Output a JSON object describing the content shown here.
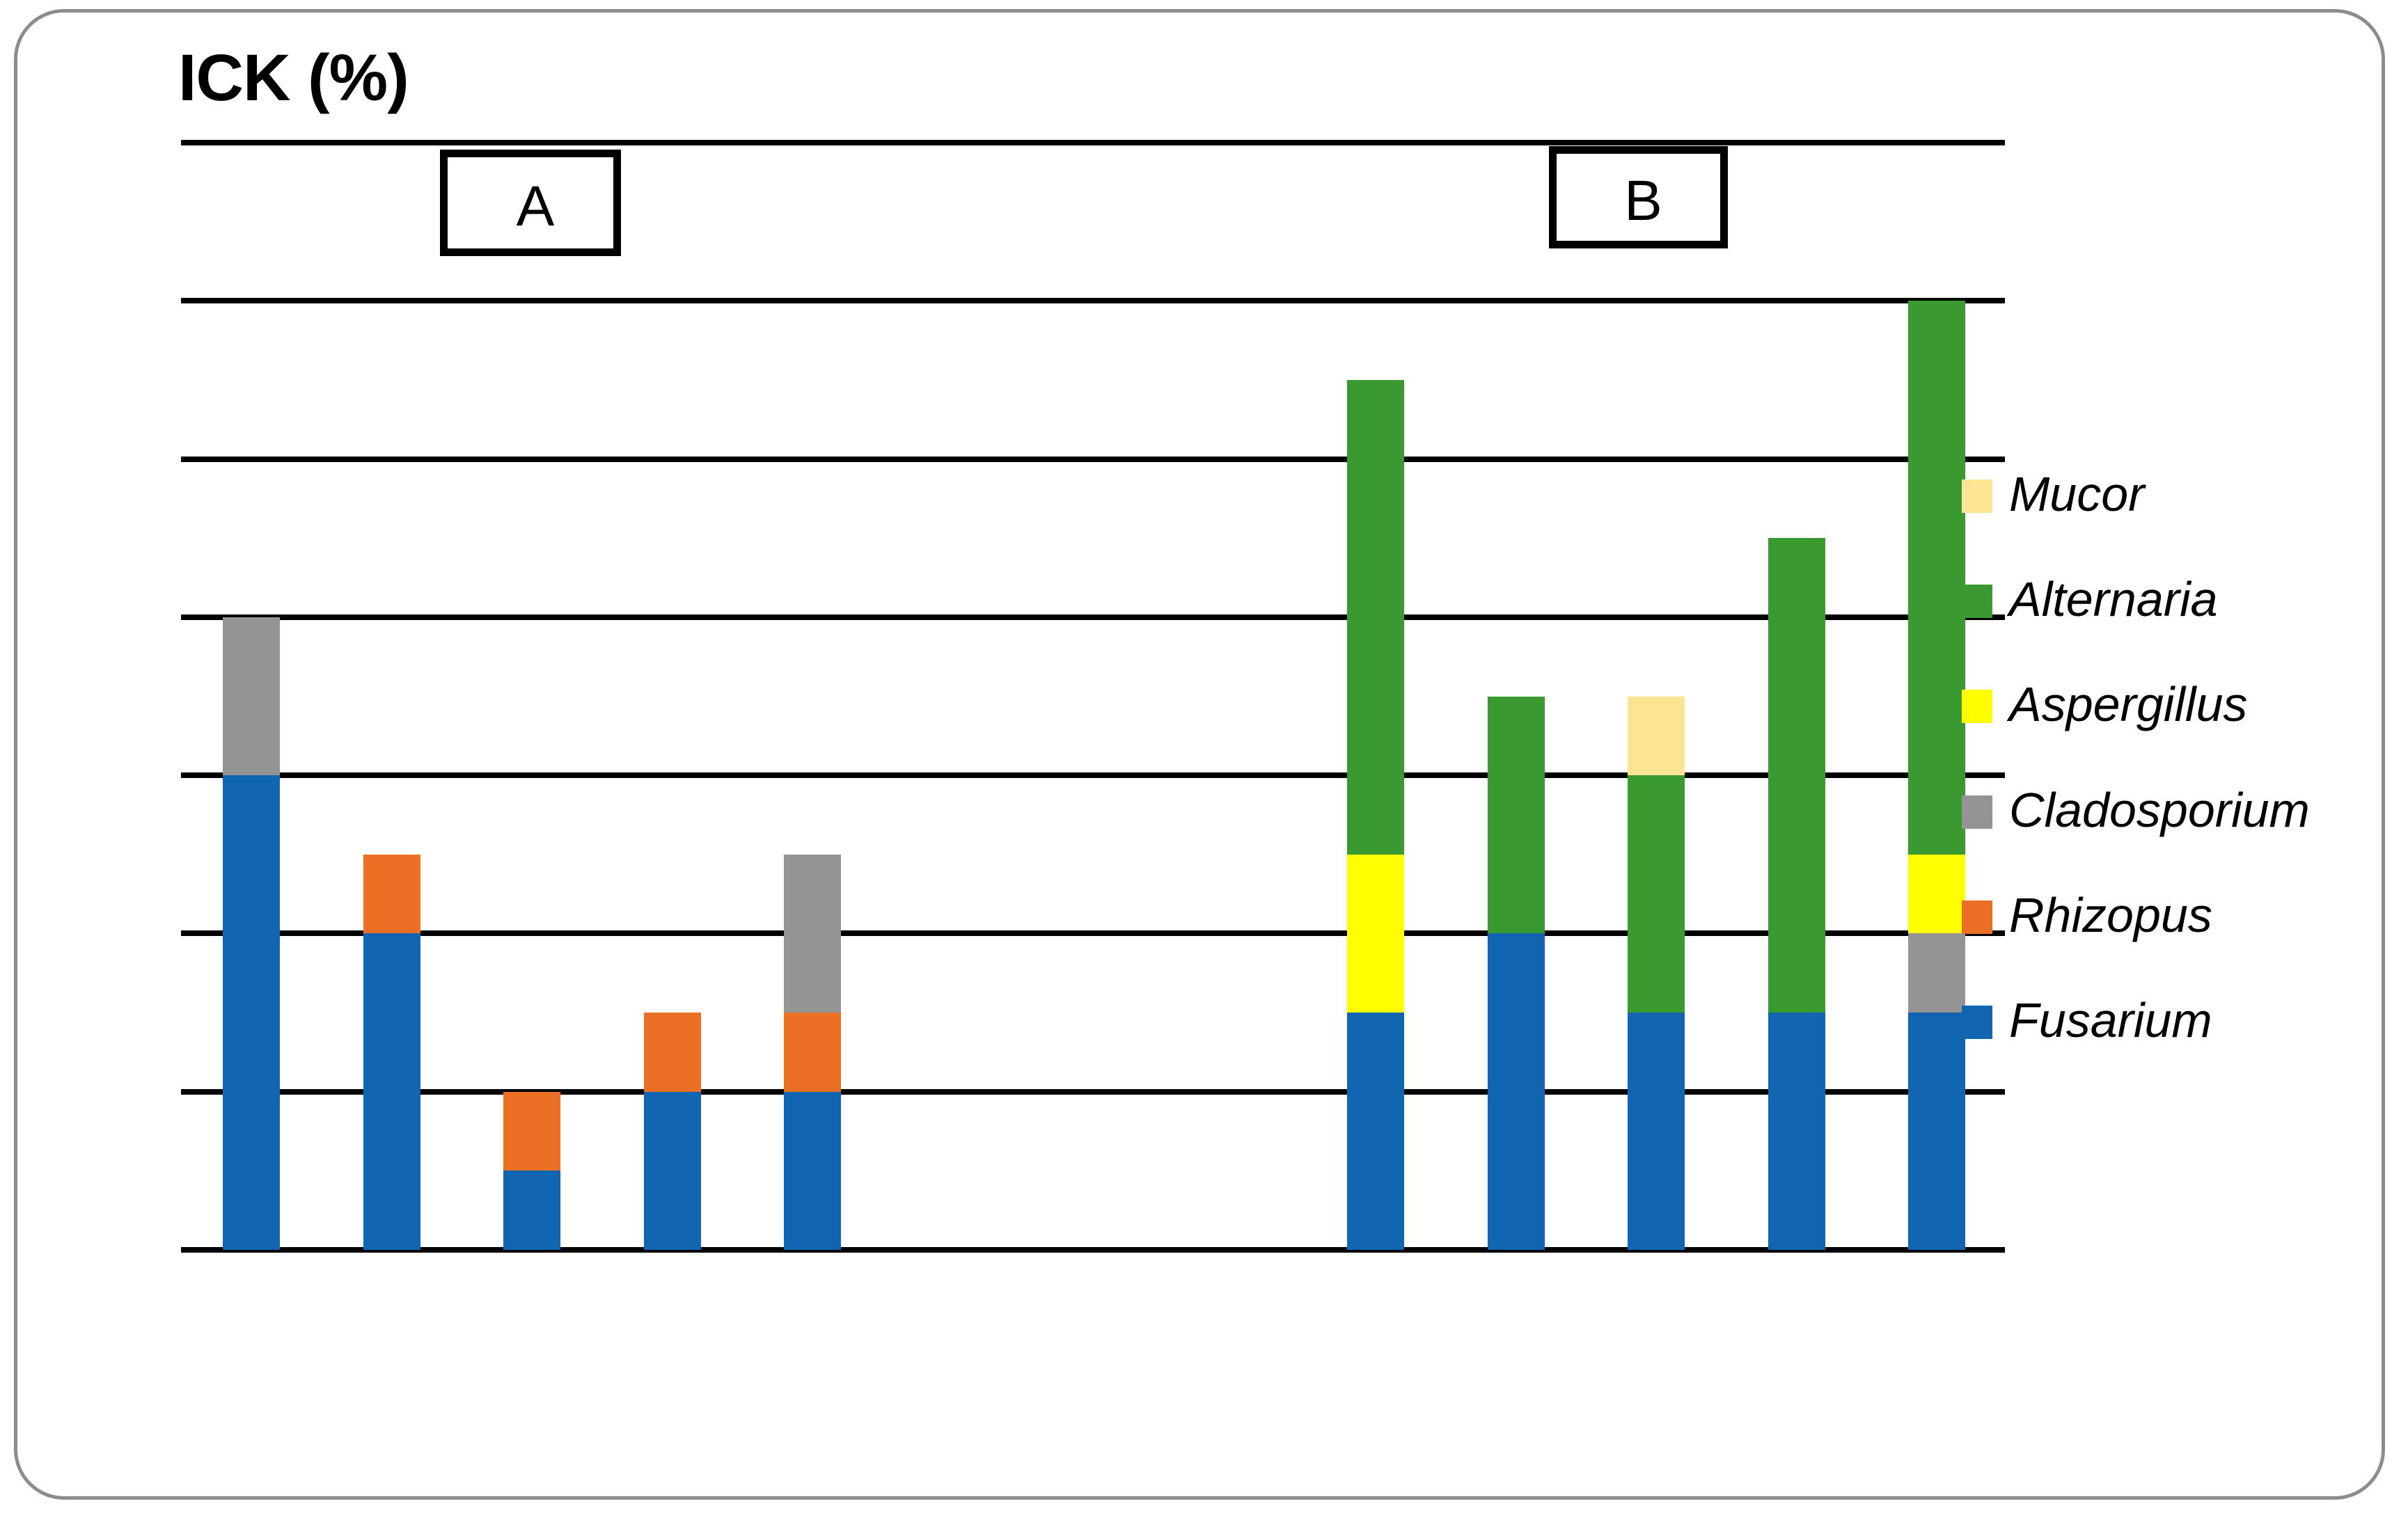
{
  "chart_data": {
    "type": "bar",
    "stacked": true,
    "title": "ICK (%)",
    "ylabel": "ICK (%)",
    "xlabel": "",
    "ylim": [
      0,
      70
    ],
    "gridline_step": 10,
    "grid": "horizontal gridlines every 10%, no axis tick labels",
    "legend_position": "right",
    "series_order_bottom_to_top": [
      "Fusarium",
      "Rhizopus",
      "Cladosporium",
      "Aspergillus",
      "Alternaria",
      "Mucor"
    ],
    "colors": {
      "Fusarium": "#1265b0",
      "Rhizopus": "#ec7023",
      "Cladosporium": "#949494",
      "Aspergillus": "#ffff00",
      "Alternaria": "#3a9930",
      "Mucor": "#ffe593"
    },
    "legend": [
      {
        "label": "Mucor",
        "color": "#ffe593"
      },
      {
        "label": "Alternaria",
        "color": "#3a9930"
      },
      {
        "label": "Aspergillus",
        "color": "#ffff00"
      },
      {
        "label": "Cladosporium",
        "color": "#949494"
      },
      {
        "label": "Rhizopus",
        "color": "#ec7023"
      },
      {
        "label": "Fusarium",
        "color": "#1265b0"
      }
    ],
    "groups": [
      {
        "label": "A",
        "bars": [
          {
            "total": 40,
            "segments": [
              {
                "genus": "Fusarium",
                "value": 30
              },
              {
                "genus": "Cladosporium",
                "value": 10
              }
            ]
          },
          {
            "total": 25,
            "segments": [
              {
                "genus": "Fusarium",
                "value": 20
              },
              {
                "genus": "Rhizopus",
                "value": 5
              }
            ]
          },
          {
            "total": 10,
            "segments": [
              {
                "genus": "Fusarium",
                "value": 5
              },
              {
                "genus": "Rhizopus",
                "value": 5
              }
            ]
          },
          {
            "total": 15,
            "segments": [
              {
                "genus": "Fusarium",
                "value": 10
              },
              {
                "genus": "Rhizopus",
                "value": 5
              }
            ]
          },
          {
            "total": 25,
            "segments": [
              {
                "genus": "Fusarium",
                "value": 10
              },
              {
                "genus": "Rhizopus",
                "value": 5
              },
              {
                "genus": "Cladosporium",
                "value": 10
              }
            ]
          }
        ]
      },
      {
        "label": "B",
        "bars": [
          {
            "total": 55,
            "segments": [
              {
                "genus": "Fusarium",
                "value": 15
              },
              {
                "genus": "Aspergillus",
                "value": 10
              },
              {
                "genus": "Alternaria",
                "value": 30
              }
            ]
          },
          {
            "total": 35,
            "segments": [
              {
                "genus": "Fusarium",
                "value": 20
              },
              {
                "genus": "Alternaria",
                "value": 15
              }
            ]
          },
          {
            "total": 35,
            "segments": [
              {
                "genus": "Fusarium",
                "value": 15
              },
              {
                "genus": "Alternaria",
                "value": 15
              },
              {
                "genus": "Mucor",
                "value": 5
              }
            ]
          },
          {
            "total": 45,
            "segments": [
              {
                "genus": "Fusarium",
                "value": 15
              },
              {
                "genus": "Alternaria",
                "value": 30
              }
            ]
          },
          {
            "total": 60,
            "segments": [
              {
                "genus": "Fusarium",
                "value": 15
              },
              {
                "genus": "Cladosporium",
                "value": 5
              },
              {
                "genus": "Aspergillus",
                "value": 5
              },
              {
                "genus": "Alternaria",
                "value": 35
              }
            ]
          }
        ]
      }
    ]
  }
}
